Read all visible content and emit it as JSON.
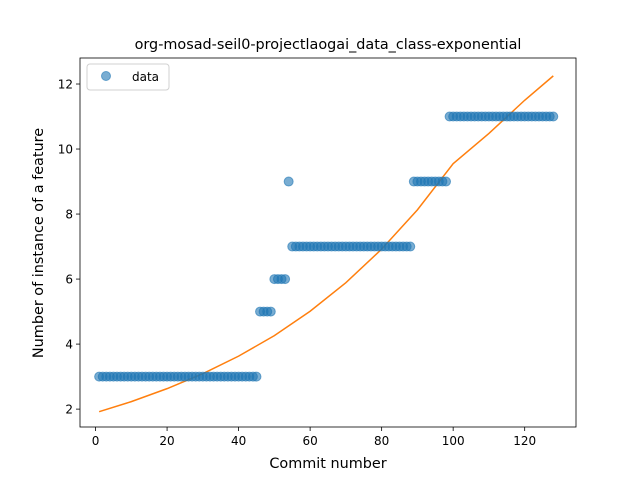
{
  "chart_data": {
    "type": "scatter",
    "title": "org-mosad-seil0-projectlaogai_data_class-exponential",
    "xlabel": "Commit number",
    "ylabel": "Number of instance of a feature",
    "xlim": [
      -4.35,
      134.35
    ],
    "ylim": [
      1.45,
      12.8
    ],
    "xticks": [
      0,
      20,
      40,
      60,
      80,
      100,
      120
    ],
    "yticks": [
      2,
      4,
      6,
      8,
      10,
      12
    ],
    "grid": false,
    "legend_position": "upper left",
    "series": [
      {
        "name": "data",
        "kind": "scatter",
        "color": "#1f77b4",
        "points": [
          [
            1,
            3
          ],
          [
            2,
            3
          ],
          [
            3,
            3
          ],
          [
            4,
            3
          ],
          [
            5,
            3
          ],
          [
            6,
            3
          ],
          [
            7,
            3
          ],
          [
            8,
            3
          ],
          [
            9,
            3
          ],
          [
            10,
            3
          ],
          [
            11,
            3
          ],
          [
            12,
            3
          ],
          [
            13,
            3
          ],
          [
            14,
            3
          ],
          [
            15,
            3
          ],
          [
            16,
            3
          ],
          [
            17,
            3
          ],
          [
            18,
            3
          ],
          [
            19,
            3
          ],
          [
            20,
            3
          ],
          [
            21,
            3
          ],
          [
            22,
            3
          ],
          [
            23,
            3
          ],
          [
            24,
            3
          ],
          [
            25,
            3
          ],
          [
            26,
            3
          ],
          [
            27,
            3
          ],
          [
            28,
            3
          ],
          [
            29,
            3
          ],
          [
            30,
            3
          ],
          [
            31,
            3
          ],
          [
            32,
            3
          ],
          [
            33,
            3
          ],
          [
            34,
            3
          ],
          [
            35,
            3
          ],
          [
            36,
            3
          ],
          [
            37,
            3
          ],
          [
            38,
            3
          ],
          [
            39,
            3
          ],
          [
            40,
            3
          ],
          [
            41,
            3
          ],
          [
            42,
            3
          ],
          [
            43,
            3
          ],
          [
            44,
            3
          ],
          [
            45,
            3
          ],
          [
            46,
            5
          ],
          [
            47,
            5
          ],
          [
            48,
            5
          ],
          [
            49,
            5
          ],
          [
            50,
            6
          ],
          [
            51,
            6
          ],
          [
            52,
            6
          ],
          [
            53,
            6
          ],
          [
            54,
            9
          ],
          [
            55,
            7
          ],
          [
            56,
            7
          ],
          [
            57,
            7
          ],
          [
            58,
            7
          ],
          [
            59,
            7
          ],
          [
            60,
            7
          ],
          [
            61,
            7
          ],
          [
            62,
            7
          ],
          [
            63,
            7
          ],
          [
            64,
            7
          ],
          [
            65,
            7
          ],
          [
            66,
            7
          ],
          [
            67,
            7
          ],
          [
            68,
            7
          ],
          [
            69,
            7
          ],
          [
            70,
            7
          ],
          [
            71,
            7
          ],
          [
            72,
            7
          ],
          [
            73,
            7
          ],
          [
            74,
            7
          ],
          [
            75,
            7
          ],
          [
            76,
            7
          ],
          [
            77,
            7
          ],
          [
            78,
            7
          ],
          [
            79,
            7
          ],
          [
            80,
            7
          ],
          [
            81,
            7
          ],
          [
            82,
            7
          ],
          [
            83,
            7
          ],
          [
            84,
            7
          ],
          [
            85,
            7
          ],
          [
            86,
            7
          ],
          [
            87,
            7
          ],
          [
            88,
            7
          ],
          [
            89,
            9
          ],
          [
            90,
            9
          ],
          [
            91,
            9
          ],
          [
            92,
            9
          ],
          [
            93,
            9
          ],
          [
            94,
            9
          ],
          [
            95,
            9
          ],
          [
            96,
            9
          ],
          [
            97,
            9
          ],
          [
            98,
            9
          ],
          [
            99,
            11
          ],
          [
            100,
            11
          ],
          [
            101,
            11
          ],
          [
            102,
            11
          ],
          [
            103,
            11
          ],
          [
            104,
            11
          ],
          [
            105,
            11
          ],
          [
            106,
            11
          ],
          [
            107,
            11
          ],
          [
            108,
            11
          ],
          [
            109,
            11
          ],
          [
            110,
            11
          ],
          [
            111,
            11
          ],
          [
            112,
            11
          ],
          [
            113,
            11
          ],
          [
            114,
            11
          ],
          [
            115,
            11
          ],
          [
            116,
            11
          ],
          [
            117,
            11
          ],
          [
            118,
            11
          ],
          [
            119,
            11
          ],
          [
            120,
            11
          ],
          [
            121,
            11
          ],
          [
            122,
            11
          ],
          [
            123,
            11
          ],
          [
            124,
            11
          ],
          [
            125,
            11
          ],
          [
            126,
            11
          ],
          [
            127,
            11
          ],
          [
            128,
            11
          ]
        ]
      },
      {
        "kind": "line",
        "color": "#ff7f0e",
        "points": [
          [
            1,
            1.92
          ],
          [
            10,
            2.23
          ],
          [
            20,
            2.63
          ],
          [
            30,
            3.09
          ],
          [
            40,
            3.63
          ],
          [
            50,
            4.26
          ],
          [
            60,
            5.01
          ],
          [
            70,
            5.89
          ],
          [
            80,
            6.92
          ],
          [
            90,
            8.13
          ],
          [
            100,
            9.55
          ],
          [
            110,
            10.48
          ],
          [
            120,
            11.5
          ],
          [
            128,
            12.25
          ]
        ]
      }
    ]
  }
}
